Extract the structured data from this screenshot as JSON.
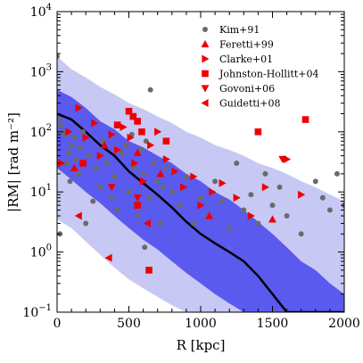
{
  "chart_data": {
    "type": "scatter",
    "xlabel": "R [kpc]",
    "ylabel": "|RM| [rad m⁻²]",
    "xlim": [
      0,
      2000
    ],
    "ylim": [
      0.1,
      10000
    ],
    "yscale": "log",
    "xticks": [
      "0",
      "500",
      "1000",
      "1500",
      "2000"
    ],
    "yticks": [
      {
        "base": "10",
        "exp": "−1"
      },
      {
        "base": "10",
        "exp": "0"
      },
      {
        "base": "10",
        "exp": "1"
      },
      {
        "base": "10",
        "exp": "2"
      },
      {
        "base": "10",
        "exp": "3"
      },
      {
        "base": "10",
        "exp": "4"
      }
    ],
    "legend_position": "top-right",
    "colors": {
      "band_outer": "#c8c8f5",
      "band_inner": "#5a5aee",
      "median_line": "#000000",
      "kim": "#6b6b6b",
      "others": "#ee0000"
    },
    "bands": {
      "x": [
        0,
        100,
        200,
        300,
        400,
        500,
        600,
        700,
        800,
        900,
        1000,
        1100,
        1200,
        1300,
        1400,
        1500,
        1600,
        1700,
        1800,
        1900,
        2000
      ],
      "outer_low": [
        3.5,
        2.5,
        1.5,
        0.9,
        0.55,
        0.35,
        0.25,
        0.18,
        0.13,
        0.1,
        0.1,
        0.1,
        0.1,
        0.1,
        0.1,
        0.1,
        0.1,
        0.1,
        0.1,
        0.1,
        0.1
      ],
      "outer_high": [
        1800,
        1100,
        800,
        560,
        420,
        300,
        240,
        180,
        140,
        100,
        80,
        60,
        50,
        40,
        30,
        25,
        20,
        15,
        12,
        9,
        7
      ],
      "inner_low": [
        25,
        16,
        10,
        6.5,
        4,
        2.5,
        1.6,
        1.1,
        0.7,
        0.45,
        0.3,
        0.2,
        0.14,
        0.1,
        0.1,
        0.1,
        0.1,
        0.1,
        0.1,
        0.1,
        0.1
      ],
      "inner_high": [
        500,
        380,
        250,
        150,
        110,
        70,
        55,
        40,
        30,
        20,
        15,
        10,
        7.5,
        5,
        3.2,
        2,
        1.2,
        0.7,
        0.5,
        0.3,
        0.2
      ],
      "median": [
        200,
        160,
        100,
        60,
        40,
        22,
        14,
        9,
        5.5,
        3.2,
        2,
        1.4,
        1,
        0.7,
        0.4,
        0.2,
        0.1,
        0.1,
        0.1,
        0.1,
        0.1
      ]
    },
    "series": [
      {
        "name": "Kim+91",
        "marker": "circle",
        "points": [
          [
            0,
            1800
          ],
          [
            10,
            160
          ],
          [
            20,
            2
          ],
          [
            30,
            130
          ],
          [
            40,
            100
          ],
          [
            60,
            90
          ],
          [
            70,
            30
          ],
          [
            80,
            45
          ],
          [
            90,
            15
          ],
          [
            100,
            60
          ],
          [
            120,
            80
          ],
          [
            130,
            35
          ],
          [
            150,
            20
          ],
          [
            160,
            55
          ],
          [
            180,
            100
          ],
          [
            200,
            3
          ],
          [
            220,
            40
          ],
          [
            250,
            7
          ],
          [
            270,
            25
          ],
          [
            300,
            12
          ],
          [
            320,
            70
          ],
          [
            350,
            30
          ],
          [
            380,
            8
          ],
          [
            400,
            18
          ],
          [
            420,
            5
          ],
          [
            450,
            45
          ],
          [
            480,
            60
          ],
          [
            500,
            10
          ],
          [
            520,
            90
          ],
          [
            540,
            25
          ],
          [
            560,
            4
          ],
          [
            580,
            50
          ],
          [
            600,
            20
          ],
          [
            610,
            1.2
          ],
          [
            620,
            70
          ],
          [
            640,
            8
          ],
          [
            650,
            500
          ],
          [
            670,
            30
          ],
          [
            700,
            15
          ],
          [
            720,
            3
          ],
          [
            740,
            12
          ],
          [
            760,
            25
          ],
          [
            800,
            10
          ],
          [
            850,
            6
          ],
          [
            900,
            18
          ],
          [
            950,
            3
          ],
          [
            1000,
            8
          ],
          [
            1050,
            4
          ],
          [
            1100,
            15
          ],
          [
            1150,
            7
          ],
          [
            1200,
            2.5
          ],
          [
            1250,
            30
          ],
          [
            1300,
            5
          ],
          [
            1350,
            9
          ],
          [
            1400,
            3
          ],
          [
            1450,
            20
          ],
          [
            1500,
            6
          ],
          [
            1550,
            12
          ],
          [
            1600,
            4
          ],
          [
            1700,
            2
          ],
          [
            1800,
            15
          ],
          [
            1850,
            8
          ],
          [
            1900,
            5
          ],
          [
            1950,
            20
          ],
          [
            2000,
            6
          ]
        ]
      },
      {
        "name": "Feretti+99",
        "marker": "triangle-up",
        "points": [
          [
            120,
            25
          ],
          [
            330,
            60
          ],
          [
            560,
            45
          ],
          [
            720,
            20
          ],
          [
            1060,
            4
          ],
          [
            1500,
            3.5
          ]
        ]
      },
      {
        "name": "Clarke+01",
        "marker": "triangle-right",
        "points": [
          [
            30,
            30
          ],
          [
            80,
            100
          ],
          [
            150,
            250
          ],
          [
            200,
            80
          ],
          [
            260,
            140
          ],
          [
            300,
            40
          ],
          [
            380,
            90
          ],
          [
            420,
            50
          ],
          [
            460,
            120
          ],
          [
            510,
            80
          ],
          [
            540,
            30
          ],
          [
            600,
            15
          ],
          [
            650,
            60
          ],
          [
            700,
            100
          ],
          [
            760,
            35
          ],
          [
            820,
            22
          ],
          [
            880,
            12
          ],
          [
            950,
            18
          ],
          [
            1000,
            6
          ],
          [
            1080,
            10
          ],
          [
            1150,
            14
          ],
          [
            1250,
            8
          ],
          [
            1350,
            4
          ],
          [
            1450,
            12
          ],
          [
            1600,
            35
          ],
          [
            1700,
            9
          ]
        ]
      },
      {
        "name": "Johnston-Hollitt+04",
        "marker": "square",
        "points": [
          [
            180,
            30
          ],
          [
            420,
            130
          ],
          [
            500,
            220
          ],
          [
            530,
            180
          ],
          [
            560,
            150
          ],
          [
            590,
            100
          ],
          [
            640,
            0.5
          ],
          [
            760,
            70
          ],
          [
            1400,
            100
          ],
          [
            1730,
            160
          ],
          [
            560,
            6
          ]
        ]
      },
      {
        "name": "Govoni+06",
        "marker": "triangle-down",
        "points": [
          [
            380,
            12
          ],
          [
            560,
            8
          ],
          [
            1570,
            35
          ]
        ]
      },
      {
        "name": "Guidetti+08",
        "marker": "triangle-left",
        "points": [
          [
            150,
            4
          ],
          [
            360,
            0.8
          ],
          [
            630,
            3
          ]
        ]
      }
    ]
  }
}
